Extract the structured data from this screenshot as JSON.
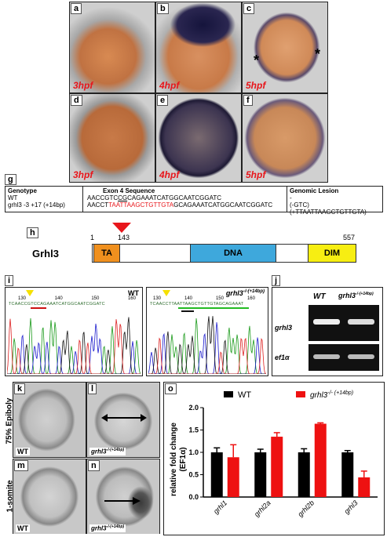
{
  "panels_top": [
    {
      "letter": "a",
      "stage": "3hpf"
    },
    {
      "letter": "b",
      "stage": "4hpf"
    },
    {
      "letter": "c",
      "stage": "5hpf"
    },
    {
      "letter": "d",
      "stage": "3hpf"
    },
    {
      "letter": "e",
      "stage": "4hpf"
    },
    {
      "letter": "f",
      "stage": "5hpf"
    }
  ],
  "asterisk": "*",
  "panel_g": {
    "letter": "g",
    "headers": [
      "Genotype",
      "Exon 4 Sequence",
      "Genomic Lesion"
    ],
    "row1": {
      "genotype": "WT",
      "seq_a": "AACCGTC",
      "seq_mark": "CG",
      "seq_b": "CAGAAATCATGGCAATCGGATC",
      "lesion": "-"
    },
    "row2": {
      "genotype": "grhl3 -3 +17 (+14bp)",
      "seq_a": "AACCT",
      "seq_ins": "TAATTAAGCTGTTGTA",
      "seq_b": "GCAGAAATCATGGCAATCGGATC",
      "lesion": "(-GTC)(+TTAATTAAGCTGTTGTA)"
    }
  },
  "panel_h": {
    "letter": "h",
    "protein": "Grhl3",
    "start": "1",
    "site": "143",
    "end": "557",
    "domains": [
      {
        "name": "TA",
        "color": "#f0901e"
      },
      {
        "name": "DNA",
        "color": "#3ea8dc"
      },
      {
        "name": "DIM",
        "color": "#f7ee12"
      }
    ]
  },
  "panel_i": {
    "letter": "i",
    "left_title": "WT",
    "right_title": "grhl3",
    "right_title_sup": "-/-(+14bp)",
    "left_ticks": [
      "130",
      "140",
      "150",
      "160"
    ],
    "right_ticks": [
      "130",
      "140",
      "150",
      "160"
    ],
    "left_seq": "TCAACCGTCCAGAAATCATGGCAATCGGATC",
    "right_seq": "TCAACCTTAATTAAGCTGTTGTAGCAGAAAT"
  },
  "panel_j": {
    "letter": "j",
    "col_wt": "WT",
    "col_mut": "grhl3",
    "col_mut_sup": "-/-(+14bp)",
    "row1": "grhl3",
    "row2": "ef1α"
  },
  "panel_klmn": {
    "letters": [
      "k",
      "l",
      "m",
      "n"
    ],
    "row1_label": "75% Epiboly",
    "row2_label": "1-somite",
    "wt": "WT",
    "mut": "grhl3",
    "mut_sup": "-/-(+14bp)"
  },
  "panel_o": {
    "letter": "o"
  },
  "chart_data": {
    "type": "bar",
    "categories": [
      "grhl1",
      "grhl2a",
      "grhl2b",
      "grhl3"
    ],
    "series": [
      {
        "name": "WT",
        "color": "#000000",
        "values": [
          1.0,
          1.0,
          1.0,
          1.0
        ],
        "errors": [
          0.1,
          0.07,
          0.08,
          0.04
        ]
      },
      {
        "name": "grhl3 -/- (+14bp)",
        "color": "#ee1111",
        "values": [
          0.89,
          1.35,
          1.64,
          0.44
        ],
        "errors": [
          0.28,
          0.09,
          0.02,
          0.14
        ]
      }
    ],
    "legend_wt": "WT",
    "legend_mut": "grhl3",
    "legend_mut_sup": "-/- (+14bp)",
    "ylabel": "relative fold change",
    "ylabel2": "(EF1α)",
    "ylim": [
      0,
      2.0
    ],
    "yticks": [
      "0.0",
      "0.5",
      "1.0",
      "1.5",
      "2.0"
    ],
    "legend_position": "top"
  }
}
